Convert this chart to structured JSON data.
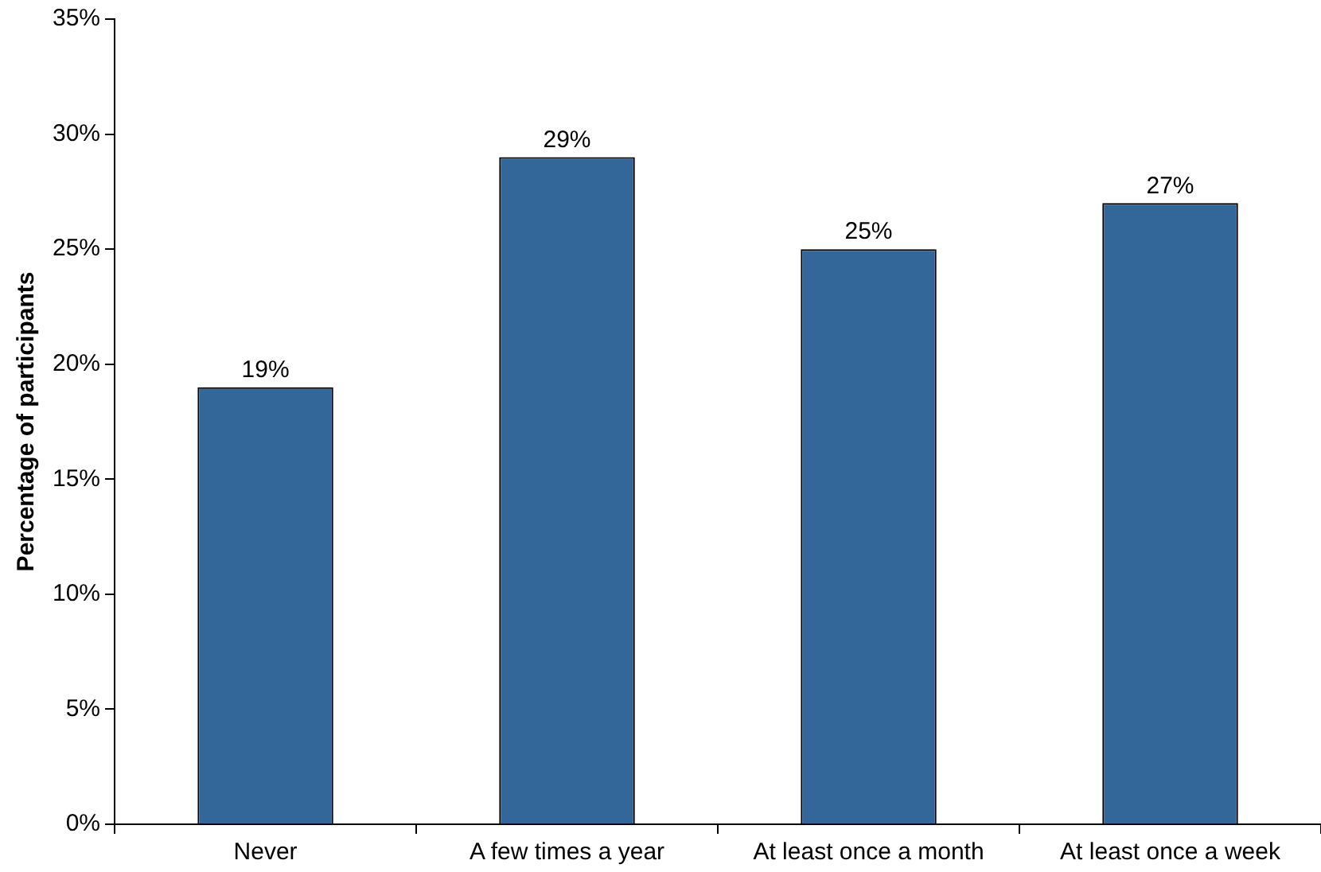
{
  "chart_data": {
    "type": "bar",
    "ylabel": "Percentage of participants",
    "categories": [
      "Never",
      "A few times a year",
      "At least once a month",
      "At least once a week"
    ],
    "values": [
      19,
      29,
      25,
      27
    ],
    "value_labels": [
      "19%",
      "29%",
      "25%",
      "27%"
    ],
    "color": "#336699",
    "ylim": [
      0,
      35
    ],
    "yticks": [
      {
        "value": 0,
        "label": "0%"
      },
      {
        "value": 5,
        "label": "5%"
      },
      {
        "value": 10,
        "label": "10%"
      },
      {
        "value": 15,
        "label": "15%"
      },
      {
        "value": 20,
        "label": "20%"
      },
      {
        "value": 25,
        "label": "25%"
      },
      {
        "value": 30,
        "label": "30%"
      },
      {
        "value": 35,
        "label": "35%"
      }
    ],
    "grid": false,
    "legend": false
  }
}
